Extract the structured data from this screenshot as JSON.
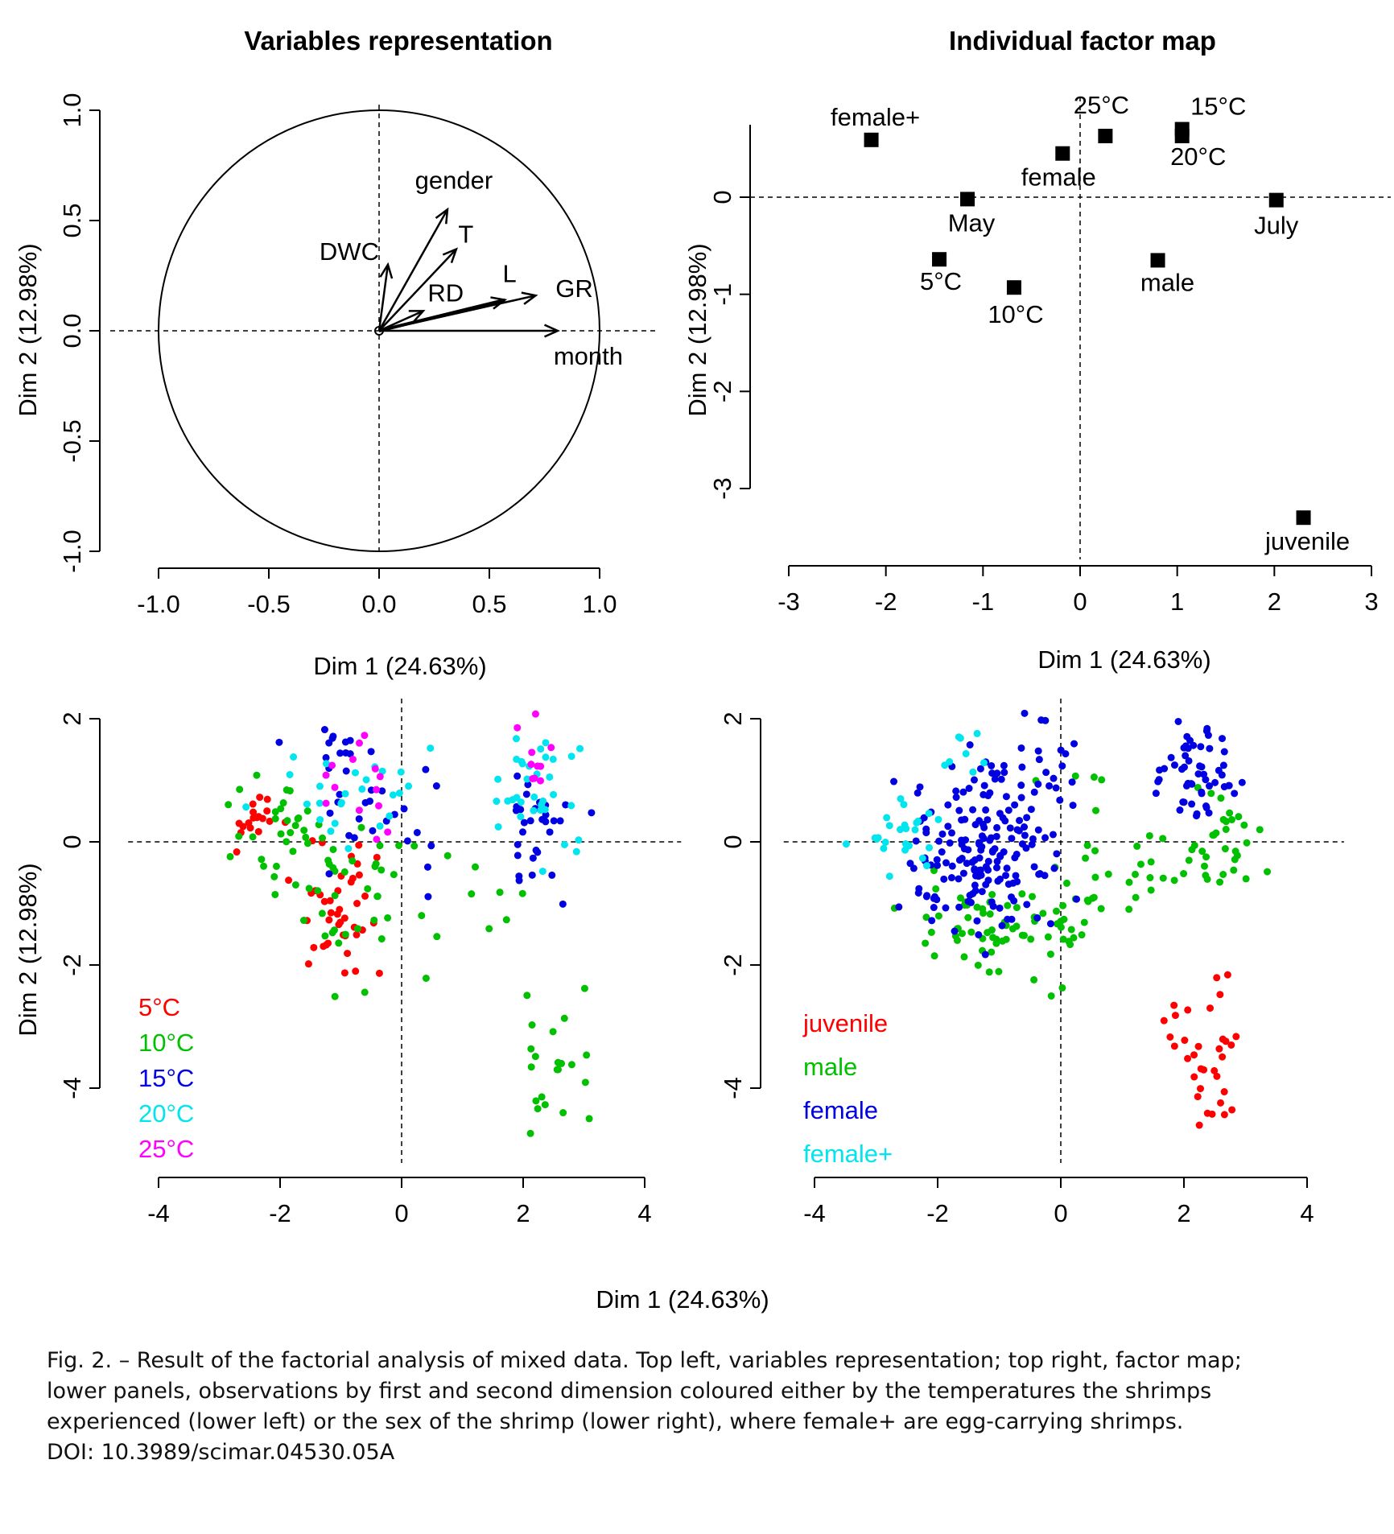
{
  "chart_data": [
    {
      "type": "vector",
      "title": "Variables representation",
      "xlabel": "Dim 1 (24.63%)",
      "ylabel": "Dim 2 (12.98%)",
      "xlim": [
        -1.0,
        1.0
      ],
      "ylim": [
        -1.0,
        1.0
      ],
      "xticks": [
        "-1.0",
        "-0.5",
        "0.0",
        "0.5",
        "1.0"
      ],
      "yticks": [
        "-1.0",
        "-0.5",
        "0.0",
        "0.5",
        "1.0"
      ],
      "circle": "unit correlation circle",
      "vectors": [
        {
          "label": "gender",
          "x": 0.31,
          "y": 0.55
        },
        {
          "label": "T",
          "x": 0.35,
          "y": 0.37
        },
        {
          "label": "DWC",
          "x": 0.04,
          "y": 0.3
        },
        {
          "label": "RD",
          "x": 0.2,
          "y": 0.09
        },
        {
          "label": "L",
          "x": 0.57,
          "y": 0.14
        },
        {
          "label": "GR",
          "x": 0.71,
          "y": 0.16
        },
        {
          "label": "month",
          "x": 0.81,
          "y": 0.0
        }
      ]
    },
    {
      "type": "scatter",
      "title": "Individual factor map",
      "xlabel": "Dim 1 (24.63%)",
      "ylabel": "Dim 2 (12.98%)",
      "xlim": [
        -3,
        3
      ],
      "ylim": [
        -3.6,
        0.8
      ],
      "xticks": [
        "-3",
        "-2",
        "-1",
        "0",
        "1",
        "2",
        "3"
      ],
      "yticks": [
        "-3",
        "-2",
        "-1",
        "0"
      ],
      "points": [
        {
          "label": "female+",
          "x": -2.15,
          "y": 0.59
        },
        {
          "label": "25°C",
          "x": 0.26,
          "y": 0.63
        },
        {
          "label": "15°C",
          "x": 1.05,
          "y": 0.7
        },
        {
          "label": "20°C",
          "x": 1.05,
          "y": 0.63
        },
        {
          "label": "female",
          "x": -0.18,
          "y": 0.45
        },
        {
          "label": "May",
          "x": -1.16,
          "y": -0.02
        },
        {
          "label": "July",
          "x": 2.02,
          "y": -0.03
        },
        {
          "label": "5°C",
          "x": -1.45,
          "y": -0.64
        },
        {
          "label": "male",
          "x": 0.8,
          "y": -0.65
        },
        {
          "label": "10°C",
          "x": -0.68,
          "y": -0.93
        },
        {
          "label": "juvenile",
          "x": 2.3,
          "y": -3.3
        }
      ]
    },
    {
      "type": "scatter",
      "xlabel": "Dim 1 (24.63%)",
      "ylabel": "Dim 2 (12.98%)",
      "xlim": [
        -4,
        4
      ],
      "ylim": [
        -5.2,
        2.3
      ],
      "xticks": [
        "-4",
        "-2",
        "0",
        "2",
        "4"
      ],
      "yticks": [
        "-4",
        "-2",
        "0",
        "2"
      ],
      "legend_position": "bottom-left",
      "series": [
        {
          "name": "5°C",
          "color": "#ff0000",
          "clusters": [
            [
              -2.4,
              0.3,
              0.35,
              0.25,
              18
            ],
            [
              -1.1,
              -1.1,
              0.4,
              0.5,
              42
            ]
          ]
        },
        {
          "name": "10°C",
          "color": "#00c000",
          "clusters": [
            [
              -1.7,
              0.0,
              0.5,
              0.45,
              40
            ],
            [
              -0.6,
              -1.0,
              0.6,
              0.6,
              30
            ],
            [
              1.5,
              -0.7,
              0.35,
              0.25,
              6
            ],
            [
              2.4,
              -3.5,
              0.3,
              0.6,
              22
            ]
          ]
        },
        {
          "name": "15°C",
          "color": "#0000e0",
          "clusters": [
            [
              -1.1,
              1.5,
              0.4,
              0.2,
              14
            ],
            [
              -0.3,
              0.4,
              0.5,
              0.5,
              22
            ],
            [
              2.3,
              0.2,
              0.35,
              0.5,
              30
            ]
          ]
        },
        {
          "name": "20°C",
          "color": "#00e5ee",
          "clusters": [
            [
              -1.0,
              0.8,
              0.6,
              0.5,
              26
            ],
            [
              2.3,
              0.8,
              0.35,
              0.6,
              34
            ]
          ]
        },
        {
          "name": "25°C",
          "color": "#ff00ff",
          "clusters": [
            [
              -0.6,
              1.0,
              0.35,
              0.45,
              14
            ],
            [
              2.0,
              1.4,
              0.25,
              0.35,
              10
            ]
          ]
        }
      ]
    },
    {
      "type": "scatter",
      "xlabel": "Dim 1 (24.63%)",
      "ylabel": "Dim 2 (12.98%)",
      "xlim": [
        -4,
        4
      ],
      "ylim": [
        -5.2,
        2.3
      ],
      "xticks": [
        "-4",
        "-2",
        "0",
        "2",
        "4"
      ],
      "yticks": [
        "-4",
        "-2",
        "0",
        "2"
      ],
      "legend_position": "bottom-left",
      "series": [
        {
          "name": "juvenile",
          "color": "#ff0000",
          "clusters": [
            [
              2.4,
              -3.5,
              0.3,
              0.6,
              34
            ]
          ]
        },
        {
          "name": "male",
          "color": "#00c000",
          "clusters": [
            [
              -1.0,
              -1.5,
              0.7,
              0.4,
              70
            ],
            [
              0.3,
              -0.5,
              0.5,
              0.7,
              22
            ],
            [
              1.5,
              -0.4,
              0.4,
              0.4,
              14
            ],
            [
              2.6,
              0.0,
              0.3,
              0.4,
              30
            ]
          ]
        },
        {
          "name": "female",
          "color": "#0000e0",
          "clusters": [
            [
              -1.2,
              -0.2,
              0.6,
              0.7,
              170
            ],
            [
              -0.6,
              1.2,
              0.4,
              0.4,
              25
            ],
            [
              2.2,
              1.2,
              0.3,
              0.4,
              55
            ]
          ]
        },
        {
          "name": "female+",
          "color": "#00e5ee",
          "clusters": [
            [
              -2.6,
              0.2,
              0.35,
              0.3,
              26
            ],
            [
              -1.6,
              1.3,
              0.3,
              0.3,
              8
            ]
          ]
        }
      ]
    }
  ],
  "shared_xlabel": "Dim 1 (24.63%)",
  "caption": [
    "Fig. 2. – Result of the factorial analysis of mixed data. Top left, variables representation; top right, factor map;",
    "lower panels, observations by first and second dimension coloured either by the temperatures the shrimps",
    "experienced (lower left) or the sex of the shrimp (lower right), where female+ are egg-carrying shrimps.",
    "DOI: 10.3989/scimar.04530.05A"
  ]
}
